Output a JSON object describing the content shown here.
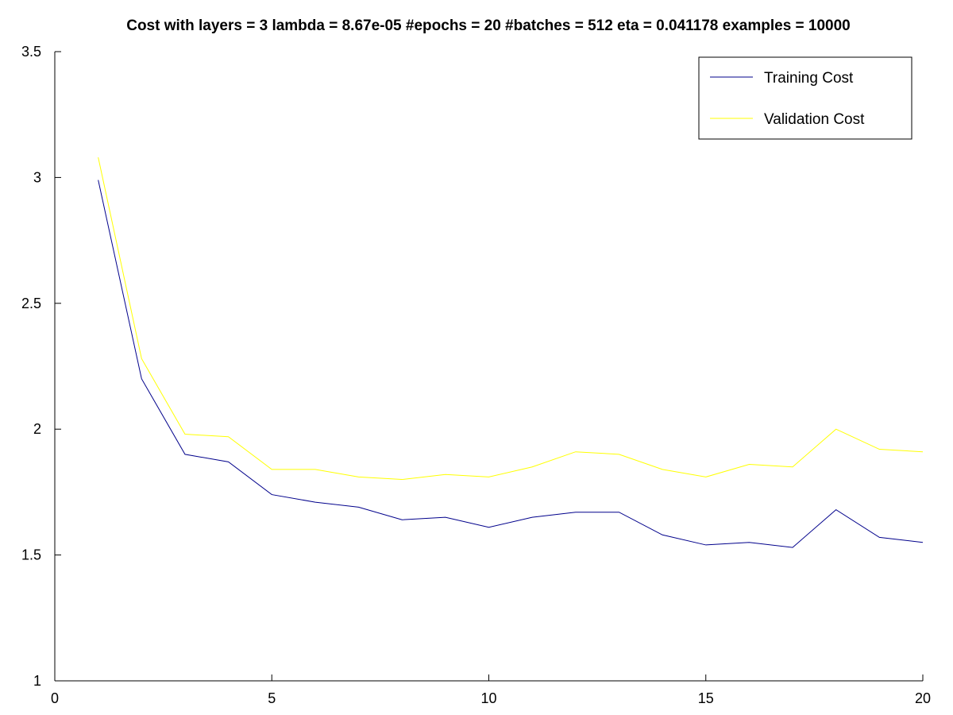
{
  "chart_data": {
    "type": "line",
    "title": "Cost with layers = 3 lambda = 8.67e-05 #epochs = 20 #batches = 512 eta = 0.041178 examples = 10000",
    "xlabel": "",
    "ylabel": "",
    "xlim": [
      0,
      20
    ],
    "ylim": [
      1,
      3.5
    ],
    "x_ticks": [
      0,
      5,
      10,
      15,
      20
    ],
    "x_tick_labels": [
      "0",
      "5",
      "10",
      "15",
      "20"
    ],
    "y_ticks": [
      1,
      1.5,
      2,
      2.5,
      3,
      3.5
    ],
    "y_tick_labels": [
      "1",
      "1.5",
      "2",
      "2.5",
      "3",
      "3.5"
    ],
    "grid": false,
    "legend_position": "top-right",
    "x": [
      1,
      2,
      3,
      4,
      5,
      6,
      7,
      8,
      9,
      10,
      11,
      12,
      13,
      14,
      15,
      16,
      17,
      18,
      19,
      20
    ],
    "series": [
      {
        "name": "Training Cost",
        "color": "#00008b",
        "values": [
          2.99,
          2.2,
          1.9,
          1.87,
          1.74,
          1.71,
          1.69,
          1.64,
          1.65,
          1.61,
          1.65,
          1.67,
          1.67,
          1.58,
          1.54,
          1.55,
          1.53,
          1.68,
          1.57,
          1.55
        ]
      },
      {
        "name": "Validation Cost",
        "color": "#ffff00",
        "values": [
          3.08,
          2.28,
          1.98,
          1.97,
          1.84,
          1.84,
          1.81,
          1.8,
          1.82,
          1.81,
          1.85,
          1.91,
          1.9,
          1.84,
          1.81,
          1.86,
          1.85,
          2.0,
          1.92,
          1.91
        ]
      }
    ]
  }
}
